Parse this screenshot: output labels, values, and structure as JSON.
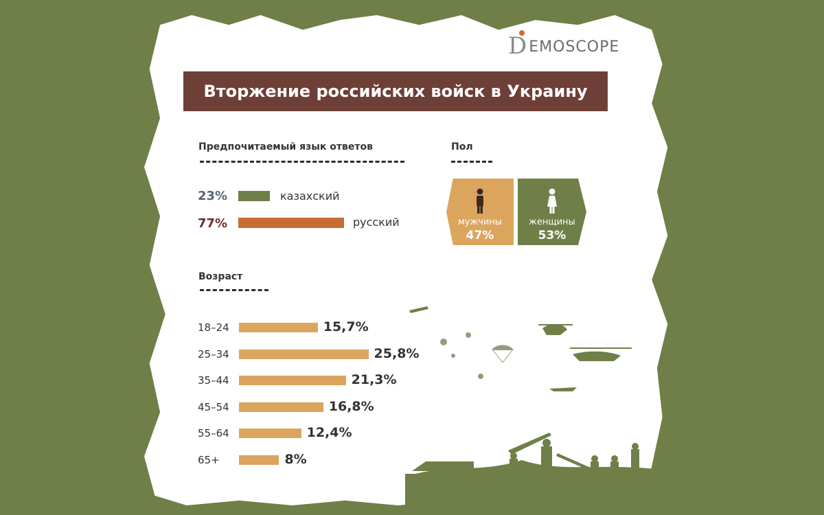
{
  "logo": {
    "letter": "D",
    "rest": "EMOSCOPE"
  },
  "title": "Вторжение российских войск в Украину",
  "colors": {
    "background": "#6f7f47",
    "title_bar": "#6e3f37",
    "kazakh": "#6f7f47",
    "russian": "#c86b35",
    "age_bars": "#dca55d",
    "men": "#dca55d",
    "women": "#6f7f47"
  },
  "language": {
    "label": "Предпочитаемый язык ответов",
    "items": [
      {
        "pct": "23%",
        "name": "казахский",
        "value": 23,
        "color": "#6f7f47",
        "pct_color": "#5b6273"
      },
      {
        "pct": "77%",
        "name": "русский",
        "value": 77,
        "color": "#c86b35",
        "pct_color": "#6e2b2b"
      }
    ]
  },
  "gender": {
    "label": "Пол",
    "men": {
      "label": "мужчины",
      "pct": "47%",
      "icon": "man-icon"
    },
    "women": {
      "label": "женщины",
      "pct": "53%",
      "icon": "woman-icon"
    }
  },
  "age": {
    "label": "Возраст"
  },
  "chart_data": {
    "type": "bar",
    "categories": [
      "18–24",
      "25–34",
      "35–44",
      "45–54",
      "55–64",
      "65+"
    ],
    "values": [
      15.7,
      25.8,
      21.3,
      16.8,
      12.4,
      8
    ],
    "value_labels": [
      "15,7%",
      "25,8%",
      "21,3%",
      "16,8%",
      "12,4%",
      "8%"
    ],
    "title": "Возраст",
    "orientation": "horizontal",
    "ylim": [
      0,
      26
    ]
  }
}
